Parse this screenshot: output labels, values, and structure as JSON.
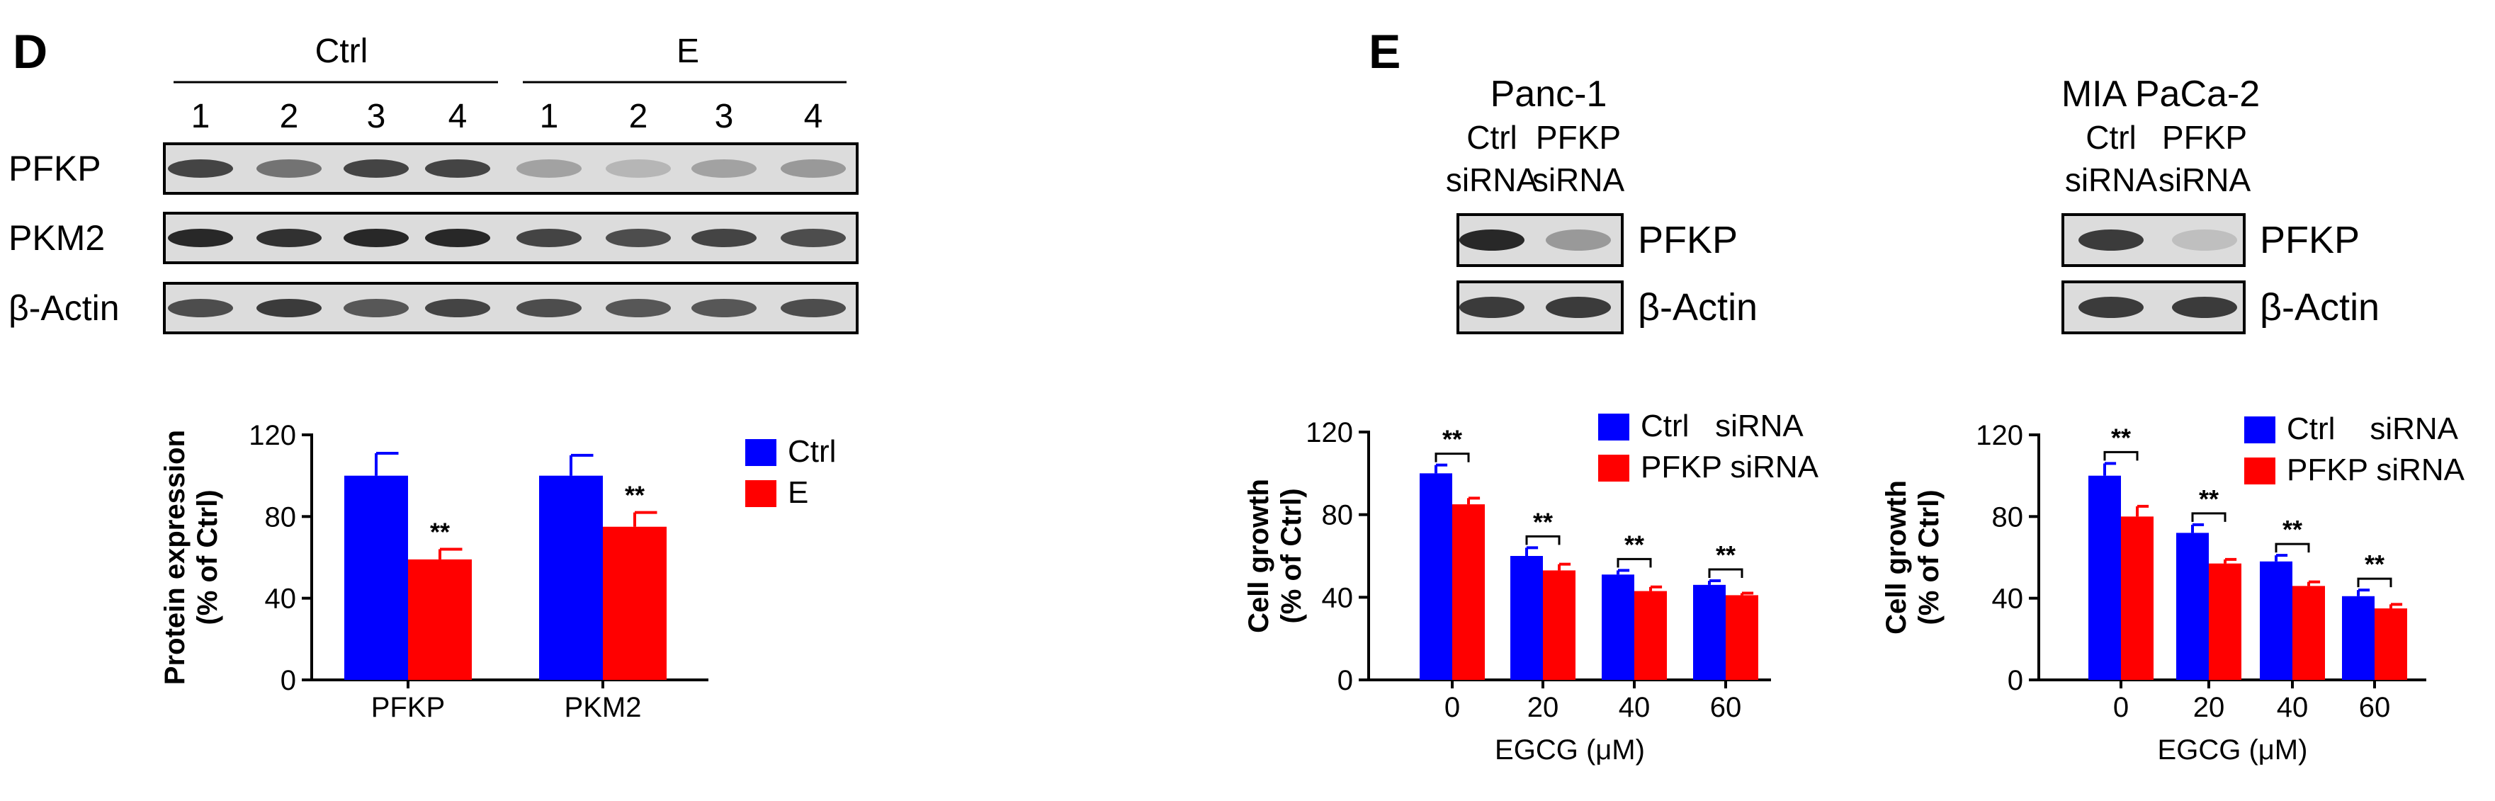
{
  "panels": {
    "D": {
      "letter": "D",
      "blot": {
        "groups": [
          "Ctrl",
          "E"
        ],
        "lanes": [
          "1",
          "2",
          "3",
          "4",
          "1",
          "2",
          "3",
          "4"
        ],
        "rows": [
          {
            "label": "PFKP",
            "intensity": [
              0.8,
              0.55,
              0.8,
              0.8,
              0.3,
              0.2,
              0.3,
              0.35
            ]
          },
          {
            "label": "PKM2",
            "intensity": [
              0.95,
              0.9,
              0.95,
              0.95,
              0.8,
              0.75,
              0.8,
              0.75
            ]
          },
          {
            "label": "β-Actin",
            "intensity": [
              0.75,
              0.85,
              0.7,
              0.8,
              0.75,
              0.7,
              0.7,
              0.75
            ]
          }
        ]
      },
      "chart_data": {
        "type": "bar",
        "categories": [
          "PFKP",
          "PKM2"
        ],
        "series": [
          {
            "name": "Ctrl",
            "values": [
              100,
              100
            ],
            "errors": [
              11,
              10
            ]
          },
          {
            "name": "E",
            "values": [
              59,
              75
            ],
            "errors": [
              5,
              7
            ]
          }
        ],
        "significance": [
          "**",
          "**"
        ],
        "ylabel": "Protein expression (% of Ctrl)",
        "yticks": [
          "0",
          "40",
          "80",
          "120"
        ],
        "ylim": [
          0,
          120
        ],
        "legend_position": "right"
      }
    },
    "E": {
      "letter": "E",
      "blots": [
        {
          "cell_line": "Panc-1",
          "lanes": [
            {
              "line1": "Ctrl",
              "line2": "siRNA"
            },
            {
              "line1": "PFKP",
              "line2": "siRNA"
            }
          ],
          "rows": [
            {
              "label": "PFKP",
              "intensity": [
                0.95,
                0.35
              ]
            },
            {
              "label": "β-Actin",
              "intensity": [
                0.85,
                0.85
              ]
            }
          ]
        },
        {
          "cell_line": "MIA PaCa-2",
          "lanes": [
            {
              "line1": "Ctrl",
              "line2": "siRNA"
            },
            {
              "line1": "PFKP",
              "line2": "siRNA"
            }
          ],
          "rows": [
            {
              "label": "PFKP",
              "intensity": [
                0.85,
                0.15
              ]
            },
            {
              "label": "β-Actin",
              "intensity": [
                0.85,
                0.85
              ]
            }
          ]
        }
      ],
      "chart_data": [
        {
          "type": "bar",
          "categories": [
            "0",
            "20",
            "40",
            "60"
          ],
          "series": [
            {
              "name": "Ctrl   siRNA",
              "values": [
                100,
                60,
                51,
                46
              ],
              "errors": [
                4,
                4,
                2,
                2
              ]
            },
            {
              "name": "PFKP siRNA",
              "values": [
                85,
                53,
                43,
                41
              ],
              "errors": [
                3,
                3,
                2,
                1
              ]
            }
          ],
          "significance": [
            "**",
            "**",
            "**",
            "**"
          ],
          "xlabel": "EGCG (μM)",
          "ylabel": "Cell growth (% of Ctrl)",
          "yticks": [
            "0",
            "40",
            "80",
            "120"
          ],
          "ylim": [
            0,
            120
          ],
          "legend_position": "top-right"
        },
        {
          "type": "bar",
          "categories": [
            "0",
            "20",
            "40",
            "60"
          ],
          "series": [
            {
              "name": "Ctrl    siRNA",
              "values": [
                100,
                72,
                58,
                41
              ],
              "errors": [
                6,
                4,
                3,
                3
              ]
            },
            {
              "name": "PFKP siRNA",
              "values": [
                80,
                57,
                46,
                35
              ],
              "errors": [
                5,
                2,
                2,
                2
              ]
            }
          ],
          "significance": [
            "**",
            "**",
            "**",
            "**"
          ],
          "xlabel": "EGCG (μM)",
          "ylabel": "Cell growth (% of Ctrl)",
          "yticks": [
            "0",
            "40",
            "80",
            "120"
          ],
          "ylim": [
            0,
            120
          ],
          "legend_position": "top-right"
        }
      ]
    }
  },
  "colors": {
    "blue": "#0000ff",
    "red": "#ff0000",
    "band": "#1e1e1e",
    "blot_bg": "#dcdcdc"
  }
}
